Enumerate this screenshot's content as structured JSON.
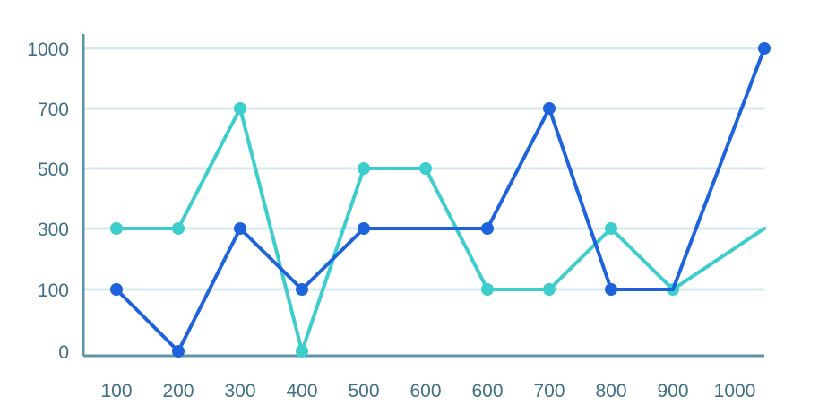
{
  "chart_data": {
    "type": "line",
    "title": "",
    "xlabel": "",
    "ylabel": "",
    "categories": [
      "100",
      "200",
      "300",
      "400",
      "500",
      "600",
      "600",
      "700",
      "800",
      "900",
      "1000"
    ],
    "y_ticks": [
      0,
      100,
      300,
      500,
      700,
      1000
    ],
    "ylim": [
      0,
      1000
    ],
    "grid": true,
    "legend": "none",
    "series": [
      {
        "color": "#3ccdcc",
        "values": [
          300,
          300,
          700,
          0,
          500,
          500,
          100,
          100,
          300,
          100,
          300
        ],
        "markers": [
          true,
          true,
          true,
          true,
          true,
          true,
          true,
          true,
          true,
          true,
          false
        ]
      },
      {
        "color": "#1e63dc",
        "values": [
          100,
          0,
          300,
          100,
          300,
          300,
          300,
          700,
          100,
          100,
          1000
        ],
        "markers": [
          true,
          true,
          true,
          true,
          true,
          false,
          true,
          true,
          true,
          false,
          true
        ]
      }
    ],
    "colors": {
      "grid": "#d6e9ef",
      "axis": "#5f94a8",
      "tick_text": "#3f6f83"
    }
  }
}
